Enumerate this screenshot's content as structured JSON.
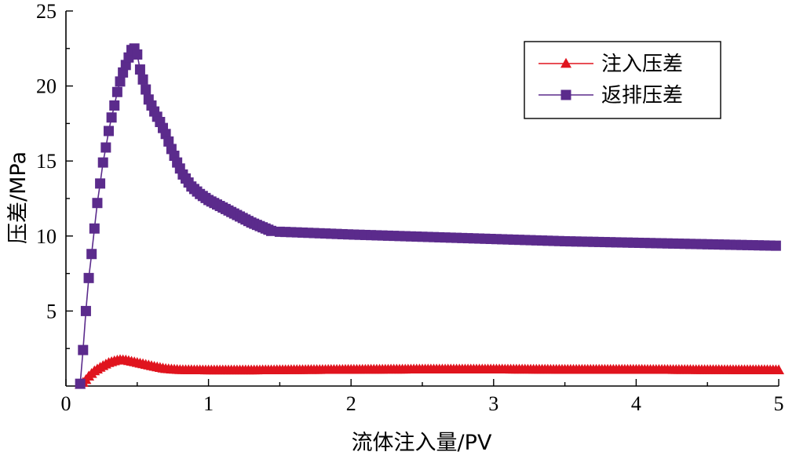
{
  "chart_data": {
    "type": "line",
    "xlabel": "流体注入量/PV",
    "ylabel": "压差/MPa",
    "xlim": [
      0,
      5
    ],
    "ylim": [
      0,
      25
    ],
    "x_ticks": [
      "0",
      "1",
      "2",
      "3",
      "4",
      "5"
    ],
    "y_ticks": [
      "5",
      "10",
      "15",
      "20",
      "25"
    ],
    "x_tick_values": [
      0,
      1,
      2,
      3,
      4,
      5
    ],
    "y_tick_values": [
      5,
      10,
      15,
      20,
      25
    ],
    "grid": false,
    "legend_position": "top-right",
    "series": [
      {
        "name": "注入压差",
        "color": "#e0141e",
        "marker": "triangle",
        "x": [
          0.1,
          0.13,
          0.16,
          0.2,
          0.25,
          0.3,
          0.35,
          0.38,
          0.42,
          0.48,
          0.55,
          0.62,
          0.7,
          0.8,
          1.0,
          1.3,
          1.6,
          2.0,
          2.5,
          3.0,
          3.5,
          4.0,
          4.5,
          5.0
        ],
        "values": [
          0.1,
          0.3,
          0.65,
          1.0,
          1.3,
          1.55,
          1.7,
          1.75,
          1.72,
          1.6,
          1.45,
          1.3,
          1.15,
          1.08,
          1.06,
          1.06,
          1.08,
          1.1,
          1.12,
          1.12,
          1.1,
          1.1,
          1.08,
          1.07
        ]
      },
      {
        "name": "返排压差",
        "color": "#5b2b8c",
        "marker": "square",
        "x": [
          0.1,
          0.12,
          0.14,
          0.16,
          0.18,
          0.2,
          0.22,
          0.24,
          0.26,
          0.28,
          0.3,
          0.32,
          0.34,
          0.36,
          0.38,
          0.4,
          0.42,
          0.44,
          0.46,
          0.48,
          0.5,
          0.52,
          0.55,
          0.58,
          0.62,
          0.66,
          0.7,
          0.74,
          0.78,
          0.82,
          0.88,
          0.94,
          1.0,
          1.1,
          1.2,
          1.3,
          1.45,
          1.6,
          2.0,
          2.5,
          3.0,
          3.5,
          4.0,
          4.5,
          5.0
        ],
        "values": [
          0.15,
          2.4,
          5.0,
          7.2,
          8.8,
          10.5,
          12.2,
          13.5,
          14.9,
          15.9,
          17.0,
          17.9,
          18.7,
          19.6,
          20.3,
          20.9,
          21.4,
          21.9,
          22.4,
          22.5,
          22.1,
          21.1,
          20.1,
          19.1,
          18.3,
          17.6,
          16.8,
          15.8,
          14.9,
          14.1,
          13.3,
          12.8,
          12.4,
          11.9,
          11.4,
          10.9,
          10.3,
          10.25,
          10.1,
          9.95,
          9.8,
          9.65,
          9.55,
          9.45,
          9.35
        ]
      }
    ]
  }
}
